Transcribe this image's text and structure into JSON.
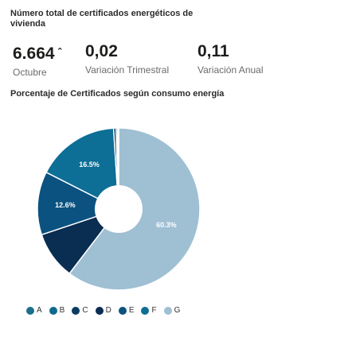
{
  "header": {
    "title": "Número total de certificados energéticos de vivienda"
  },
  "kpis": [
    {
      "value": "6.664",
      "trend": "⌃",
      "label": "Octubre"
    },
    {
      "value": "0,02",
      "label": "Variación Trimestral"
    },
    {
      "value": "0,11",
      "label": "Variación Anual"
    }
  ],
  "chart_data": {
    "type": "pie",
    "donut": true,
    "title": "Porcentaje de Certificados según consumo energía",
    "categories": [
      "A",
      "B",
      "C",
      "D",
      "E",
      "F",
      "G"
    ],
    "values": [
      0.2,
      0.3,
      0.5,
      9.5,
      12.6,
      16.5,
      60.3
    ],
    "value_labels": [
      "",
      "",
      "",
      "",
      "12.6%",
      "16.5%",
      "60.3%"
    ],
    "colors": [
      "#1b6f8c",
      "#0f6a8b",
      "#0a3c62",
      "#0a2d52",
      "#0b5280",
      "#0d6e96",
      "#4f86a9"
    ],
    "slice_order": [
      "G",
      "D",
      "E",
      "F",
      "C",
      "B",
      "A"
    ],
    "start_color_g": "#9fbfd3",
    "legend_position": "bottom"
  }
}
